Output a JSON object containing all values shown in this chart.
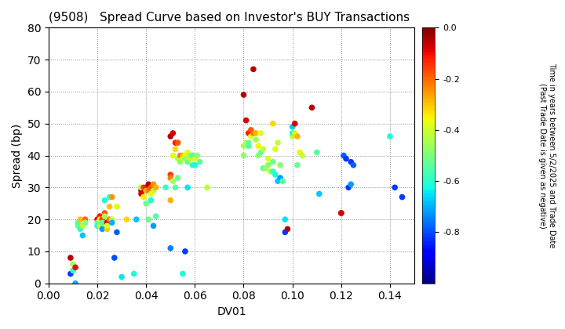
{
  "title": "(9508)   Spread Curve based on Investor's BUY Transactions",
  "xlabel": "DV01",
  "ylabel": "Spread (bp)",
  "xlim": [
    0.0,
    0.15
  ],
  "ylim": [
    0,
    80
  ],
  "xticks": [
    0.0,
    0.02,
    0.04,
    0.06,
    0.08,
    0.1,
    0.12,
    0.14
  ],
  "yticks": [
    0,
    10,
    20,
    30,
    40,
    50,
    60,
    70,
    80
  ],
  "colorbar_label_line1": "Time in years between 5/2/2025 and Trade Date",
  "colorbar_label_line2": "(Past Trade Date is given as negative)",
  "cmap": "jet",
  "vmin": -1.0,
  "vmax": 0.0,
  "points": [
    [
      0.009,
      8,
      -0.05
    ],
    [
      0.009,
      3,
      -0.82
    ],
    [
      0.01,
      4,
      -0.6
    ],
    [
      0.01,
      6,
      -0.45
    ],
    [
      0.011,
      0,
      -0.7
    ],
    [
      0.011,
      5,
      -0.1
    ],
    [
      0.012,
      18,
      -0.5
    ],
    [
      0.012,
      19,
      -0.55
    ],
    [
      0.013,
      17,
      -0.6
    ],
    [
      0.013,
      20,
      -0.3
    ],
    [
      0.014,
      18,
      -0.42
    ],
    [
      0.014,
      15,
      -0.68
    ],
    [
      0.015,
      20,
      -0.2
    ],
    [
      0.015,
      19,
      -0.48
    ],
    [
      0.02,
      20,
      -0.08
    ],
    [
      0.02,
      19,
      -0.52
    ],
    [
      0.02,
      18,
      -0.62
    ],
    [
      0.021,
      21,
      -0.12
    ],
    [
      0.021,
      20,
      -0.35
    ],
    [
      0.021,
      18,
      -0.38
    ],
    [
      0.022,
      20,
      -0.15
    ],
    [
      0.022,
      19,
      -0.55
    ],
    [
      0.022,
      17,
      -0.72
    ],
    [
      0.023,
      22,
      -0.18
    ],
    [
      0.023,
      21,
      -0.45
    ],
    [
      0.023,
      26,
      -0.62
    ],
    [
      0.024,
      19,
      -0.08
    ],
    [
      0.024,
      17,
      -0.3
    ],
    [
      0.024,
      18,
      -0.38
    ],
    [
      0.025,
      20,
      -0.22
    ],
    [
      0.025,
      27,
      -0.58
    ],
    [
      0.025,
      24,
      -0.3
    ],
    [
      0.026,
      27,
      -0.25
    ],
    [
      0.026,
      20,
      -0.4
    ],
    [
      0.026,
      19,
      -0.7
    ],
    [
      0.027,
      8,
      -0.8
    ],
    [
      0.028,
      16,
      -0.78
    ],
    [
      0.028,
      24,
      -0.38
    ],
    [
      0.03,
      2,
      -0.65
    ],
    [
      0.032,
      20,
      -0.32
    ],
    [
      0.035,
      3,
      -0.62
    ],
    [
      0.036,
      20,
      -0.68
    ],
    [
      0.038,
      29,
      -0.05
    ],
    [
      0.038,
      28,
      -0.08
    ],
    [
      0.038,
      30,
      -0.45
    ],
    [
      0.039,
      30,
      -0.15
    ],
    [
      0.039,
      27,
      -0.48
    ],
    [
      0.039,
      27,
      -0.35
    ],
    [
      0.04,
      30,
      -0.12
    ],
    [
      0.04,
      29,
      -0.28
    ],
    [
      0.04,
      25,
      -0.52
    ],
    [
      0.041,
      31,
      -0.05
    ],
    [
      0.041,
      29,
      -0.22
    ],
    [
      0.041,
      20,
      -0.52
    ],
    [
      0.042,
      30,
      -0.18
    ],
    [
      0.042,
      28,
      -0.38
    ],
    [
      0.042,
      26,
      -0.62
    ],
    [
      0.043,
      31,
      -0.25
    ],
    [
      0.043,
      29,
      -0.42
    ],
    [
      0.043,
      18,
      -0.72
    ],
    [
      0.044,
      30,
      -0.28
    ],
    [
      0.044,
      21,
      -0.55
    ],
    [
      0.048,
      30,
      -0.58
    ],
    [
      0.05,
      46,
      -0.05
    ],
    [
      0.05,
      34,
      -0.15
    ],
    [
      0.05,
      33,
      -0.22
    ],
    [
      0.05,
      26,
      -0.28
    ],
    [
      0.05,
      11,
      -0.75
    ],
    [
      0.051,
      47,
      -0.08
    ],
    [
      0.051,
      40,
      -0.38
    ],
    [
      0.051,
      32,
      -0.45
    ],
    [
      0.052,
      44,
      -0.12
    ],
    [
      0.052,
      42,
      -0.32
    ],
    [
      0.052,
      30,
      -0.55
    ],
    [
      0.053,
      44,
      -0.18
    ],
    [
      0.053,
      39,
      -0.42
    ],
    [
      0.053,
      33,
      -0.52
    ],
    [
      0.054,
      40,
      -0.22
    ],
    [
      0.054,
      38,
      -0.48
    ],
    [
      0.055,
      40,
      -0.28
    ],
    [
      0.055,
      39,
      -0.42
    ],
    [
      0.055,
      3,
      -0.62
    ],
    [
      0.056,
      40,
      -0.35
    ],
    [
      0.056,
      39,
      -0.45
    ],
    [
      0.056,
      10,
      -0.82
    ],
    [
      0.057,
      41,
      -0.38
    ],
    [
      0.057,
      38,
      -0.52
    ],
    [
      0.057,
      30,
      -0.65
    ],
    [
      0.058,
      40,
      -0.48
    ],
    [
      0.058,
      39,
      -0.42
    ],
    [
      0.059,
      40,
      -0.55
    ],
    [
      0.059,
      37,
      -0.58
    ],
    [
      0.06,
      39,
      -0.38
    ],
    [
      0.06,
      37,
      -0.62
    ],
    [
      0.061,
      40,
      -0.48
    ],
    [
      0.062,
      38,
      -0.55
    ],
    [
      0.065,
      30,
      -0.42
    ],
    [
      0.08,
      59,
      -0.05
    ],
    [
      0.08,
      43,
      -0.45
    ],
    [
      0.08,
      40,
      -0.48
    ],
    [
      0.081,
      51,
      -0.08
    ],
    [
      0.081,
      44,
      -0.42
    ],
    [
      0.082,
      47,
      -0.12
    ],
    [
      0.082,
      44,
      -0.52
    ],
    [
      0.082,
      43,
      -0.55
    ],
    [
      0.083,
      48,
      -0.18
    ],
    [
      0.083,
      46,
      -0.38
    ],
    [
      0.084,
      67,
      -0.05
    ],
    [
      0.084,
      47,
      -0.22
    ],
    [
      0.085,
      47,
      -0.28
    ],
    [
      0.085,
      45,
      -0.45
    ],
    [
      0.086,
      43,
      -0.35
    ],
    [
      0.086,
      40,
      -0.48
    ],
    [
      0.087,
      47,
      -0.38
    ],
    [
      0.087,
      41,
      -0.52
    ],
    [
      0.088,
      42,
      -0.42
    ],
    [
      0.088,
      36,
      -0.55
    ],
    [
      0.089,
      36,
      -0.45
    ],
    [
      0.09,
      39,
      -0.38
    ],
    [
      0.09,
      37,
      -0.48
    ],
    [
      0.091,
      35,
      -0.42
    ],
    [
      0.092,
      50,
      -0.32
    ],
    [
      0.092,
      38,
      -0.52
    ],
    [
      0.092,
      35,
      -0.58
    ],
    [
      0.093,
      42,
      -0.38
    ],
    [
      0.093,
      34,
      -0.62
    ],
    [
      0.094,
      44,
      -0.42
    ],
    [
      0.094,
      32,
      -0.68
    ],
    [
      0.095,
      37,
      -0.48
    ],
    [
      0.095,
      33,
      -0.72
    ],
    [
      0.096,
      32,
      -0.55
    ],
    [
      0.097,
      20,
      -0.65
    ],
    [
      0.097,
      16,
      -0.82
    ],
    [
      0.098,
      17,
      -0.05
    ],
    [
      0.1,
      49,
      -0.68
    ],
    [
      0.1,
      46,
      -0.42
    ],
    [
      0.1,
      47,
      -0.62
    ],
    [
      0.101,
      50,
      -0.08
    ],
    [
      0.101,
      47,
      -0.38
    ],
    [
      0.102,
      46,
      -0.28
    ],
    [
      0.102,
      37,
      -0.52
    ],
    [
      0.103,
      41,
      -0.35
    ],
    [
      0.104,
      40,
      -0.42
    ],
    [
      0.108,
      55,
      -0.05
    ],
    [
      0.11,
      41,
      -0.55
    ],
    [
      0.111,
      28,
      -0.68
    ],
    [
      0.12,
      22,
      -0.05
    ],
    [
      0.12,
      22,
      -0.08
    ],
    [
      0.121,
      40,
      -0.78
    ],
    [
      0.122,
      39,
      -0.82
    ],
    [
      0.123,
      30,
      -0.82
    ],
    [
      0.124,
      31,
      -0.72
    ],
    [
      0.124,
      38,
      -0.82
    ],
    [
      0.125,
      37,
      -0.78
    ],
    [
      0.14,
      46,
      -0.62
    ],
    [
      0.142,
      30,
      -0.82
    ],
    [
      0.145,
      27,
      -0.82
    ]
  ]
}
